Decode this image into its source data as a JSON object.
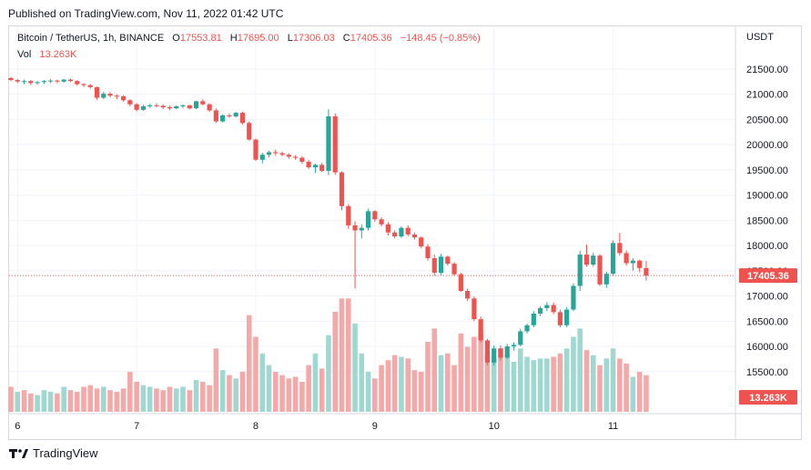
{
  "header": {
    "published_text": "Published on TradingView.com, Nov 11, 2022 01:42 UTC"
  },
  "legend": {
    "symbol": "Bitcoin / TetherUS, 1h, BINANCE",
    "o_label": "O",
    "o_value": "17553.81",
    "h_label": "H",
    "h_value": "17695.00",
    "l_label": "L",
    "l_value": "17306.03",
    "c_label": "C",
    "c_value": "17405.36",
    "change": "−148.45 (−0.85%)",
    "vol_label": "Vol",
    "vol_value": "13.263K"
  },
  "footer": {
    "brand": "TradingView"
  },
  "colors": {
    "up": "#26a69a",
    "down": "#ef5350",
    "vol_up": "#9fd8d1",
    "vol_down": "#f4a9a8",
    "grid": "#f0f3fa"
  },
  "chart_data": {
    "type": "candlestick",
    "currency_label": "USDT",
    "y_ticks": [
      "21500.00",
      "21000.00",
      "20500.00",
      "20000.00",
      "19500.00",
      "19000.00",
      "18500.00",
      "18000.00",
      "17500.00",
      "17000.00",
      "16500.00",
      "16000.00",
      "15500.00"
    ],
    "ylim": [
      15100,
      21750
    ],
    "x_tick_labels": [
      "6",
      "7",
      "8",
      "9",
      "10",
      "11"
    ],
    "x_tick_index": [
      1,
      19,
      37,
      55,
      73,
      91
    ],
    "last_price": "17405.36",
    "last_volume": "13.263K",
    "volume_max": 6000,
    "candles": [
      [
        21320,
        21340,
        21260,
        21280
      ],
      [
        21280,
        21300,
        21220,
        21250
      ],
      [
        21250,
        21290,
        21200,
        21260
      ],
      [
        21260,
        21280,
        21180,
        21220
      ],
      [
        21220,
        21260,
        21190,
        21240
      ],
      [
        21240,
        21280,
        21200,
        21260
      ],
      [
        21260,
        21300,
        21220,
        21270
      ],
      [
        21270,
        21290,
        21220,
        21250
      ],
      [
        21250,
        21300,
        21230,
        21290
      ],
      [
        21290,
        21310,
        21240,
        21260
      ],
      [
        21260,
        21280,
        21170,
        21200
      ],
      [
        21200,
        21220,
        21140,
        21180
      ],
      [
        21180,
        21200,
        21110,
        21140
      ],
      [
        21140,
        21150,
        20890,
        20930
      ],
      [
        20930,
        21050,
        20900,
        21010
      ],
      [
        21010,
        21040,
        20940,
        20970
      ],
      [
        20970,
        21000,
        20900,
        20960
      ],
      [
        20960,
        20980,
        20850,
        20880
      ],
      [
        20880,
        20900,
        20760,
        20800
      ],
      [
        20800,
        20820,
        20660,
        20690
      ],
      [
        20690,
        20790,
        20670,
        20760
      ],
      [
        20760,
        20810,
        20730,
        20780
      ],
      [
        20780,
        20820,
        20740,
        20770
      ],
      [
        20770,
        20800,
        20700,
        20740
      ],
      [
        20740,
        20770,
        20690,
        20720
      ],
      [
        20720,
        20780,
        20700,
        20760
      ],
      [
        20760,
        20800,
        20720,
        20780
      ],
      [
        20780,
        20790,
        20700,
        20720
      ],
      [
        20720,
        20870,
        20700,
        20860
      ],
      [
        20860,
        20900,
        20780,
        20800
      ],
      [
        20800,
        20820,
        20650,
        20680
      ],
      [
        20680,
        20720,
        20430,
        20460
      ],
      [
        20460,
        20600,
        20440,
        20580
      ],
      [
        20580,
        20620,
        20530,
        20560
      ],
      [
        20560,
        20650,
        20540,
        20630
      ],
      [
        20630,
        20650,
        20400,
        20430
      ],
      [
        20430,
        20460,
        20080,
        20100
      ],
      [
        20100,
        20120,
        19680,
        19700
      ],
      [
        19700,
        19840,
        19630,
        19800
      ],
      [
        19800,
        19880,
        19750,
        19850
      ],
      [
        19850,
        19900,
        19780,
        19830
      ],
      [
        19830,
        19860,
        19770,
        19800
      ],
      [
        19800,
        19830,
        19720,
        19760
      ],
      [
        19760,
        19790,
        19700,
        19740
      ],
      [
        19740,
        19770,
        19620,
        19660
      ],
      [
        19660,
        19700,
        19520,
        19550
      ],
      [
        19550,
        19620,
        19440,
        19600
      ],
      [
        19600,
        19640,
        19460,
        19480
      ],
      [
        19480,
        20700,
        19400,
        20560
      ],
      [
        20560,
        20620,
        19400,
        19450
      ],
      [
        19450,
        19470,
        18700,
        18780
      ],
      [
        18780,
        18820,
        18330,
        18400
      ],
      [
        18400,
        18480,
        17150,
        18300
      ],
      [
        18300,
        18420,
        18140,
        18350
      ],
      [
        18350,
        18730,
        18300,
        18680
      ],
      [
        18680,
        18700,
        18470,
        18520
      ],
      [
        18520,
        18560,
        18380,
        18420
      ],
      [
        18420,
        18460,
        18200,
        18260
      ],
      [
        18260,
        18300,
        18140,
        18180
      ],
      [
        18180,
        18380,
        18150,
        18350
      ],
      [
        18350,
        18400,
        18180,
        18220
      ],
      [
        18220,
        18260,
        18120,
        18160
      ],
      [
        18160,
        18180,
        17950,
        17980
      ],
      [
        17980,
        18030,
        17700,
        17750
      ],
      [
        17750,
        17820,
        17400,
        17460
      ],
      [
        17460,
        17830,
        17420,
        17780
      ],
      [
        17780,
        17800,
        17600,
        17640
      ],
      [
        17640,
        17670,
        17400,
        17430
      ],
      [
        17430,
        17460,
        17080,
        17100
      ],
      [
        17100,
        17150,
        16900,
        16950
      ],
      [
        16950,
        16990,
        16500,
        16540
      ],
      [
        16540,
        16590,
        16080,
        16120
      ],
      [
        16120,
        16150,
        15630,
        15680
      ],
      [
        15680,
        16020,
        15620,
        15960
      ],
      [
        15960,
        16020,
        15720,
        15780
      ],
      [
        15780,
        16050,
        15750,
        16000
      ],
      [
        16000,
        16080,
        15920,
        16030
      ],
      [
        16030,
        16350,
        16000,
        16300
      ],
      [
        16300,
        16450,
        16260,
        16420
      ],
      [
        16420,
        16700,
        16380,
        16650
      ],
      [
        16650,
        16800,
        16600,
        16760
      ],
      [
        16760,
        16880,
        16700,
        16820
      ],
      [
        16820,
        16870,
        16640,
        16680
      ],
      [
        16680,
        16730,
        16380,
        16420
      ],
      [
        16420,
        16780,
        16380,
        16730
      ],
      [
        16730,
        17250,
        16700,
        17200
      ],
      [
        17200,
        17900,
        17100,
        17820
      ],
      [
        17820,
        18020,
        17580,
        17620
      ],
      [
        17620,
        17860,
        17580,
        17800
      ],
      [
        17800,
        17830,
        17200,
        17230
      ],
      [
        17230,
        17480,
        17160,
        17440
      ],
      [
        17440,
        18100,
        17400,
        18050
      ],
      [
        18050,
        18250,
        17800,
        17850
      ],
      [
        17850,
        17900,
        17600,
        17650
      ],
      [
        17650,
        17750,
        17500,
        17700
      ],
      [
        17700,
        17720,
        17470,
        17553.81
      ],
      [
        17553.81,
        17695,
        17306.03,
        17405.36
      ]
    ],
    "volumes": [
      1500,
      1200,
      1300,
      1100,
      1000,
      1300,
      1200,
      1100,
      1500,
      1300,
      1200,
      1500,
      1600,
      1400,
      1500,
      1300,
      1200,
      1400,
      2400,
      1800,
      1600,
      1500,
      1400,
      1300,
      1500,
      1400,
      1500,
      1300,
      1900,
      1800,
      1600,
      3800,
      2500,
      2200,
      2000,
      2400,
      5800,
      4500,
      3500,
      2800,
      2400,
      2200,
      2000,
      2100,
      1800,
      2800,
      3500,
      2600,
      4600,
      6000,
      6800,
      6800,
      5300,
      3500,
      2400,
      2000,
      2800,
      3100,
      3400,
      3300,
      3200,
      2500,
      2400,
      4200,
      5000,
      3400,
      3500,
      2800,
      4700,
      3900,
      4500,
      4800,
      3400,
      3200,
      3800,
      3400,
      3000,
      3800,
      3300,
      3100,
      3200,
      3200,
      3300,
      3500,
      3800,
      4500,
      5000,
      3700,
      3400,
      2800,
      3200,
      3800,
      3200,
      2900,
      2100,
      2400,
      2200
    ],
    "vol_up_flags": [
      0,
      1,
      0,
      0,
      1,
      1,
      1,
      0,
      1,
      0,
      0,
      0,
      0,
      0,
      1,
      0,
      0,
      0,
      0,
      0,
      1,
      1,
      0,
      0,
      0,
      1,
      1,
      0,
      1,
      0,
      0,
      0,
      1,
      0,
      1,
      0,
      0,
      0,
      1,
      1,
      0,
      0,
      0,
      0,
      0,
      0,
      1,
      0,
      1,
      0,
      0,
      0,
      1,
      1,
      1,
      0,
      0,
      0,
      0,
      1,
      0,
      0,
      0,
      0,
      0,
      1,
      0,
      0,
      0,
      0,
      0,
      0,
      0,
      1,
      0,
      1,
      1,
      1,
      1,
      1,
      1,
      1,
      0,
      0,
      1,
      1,
      1,
      0,
      1,
      0,
      1,
      1,
      0,
      0,
      1,
      0,
      0
    ]
  }
}
